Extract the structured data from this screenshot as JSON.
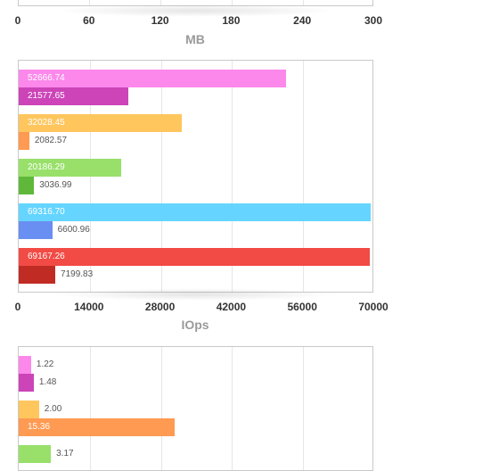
{
  "chart_data": [
    {
      "type": "bar",
      "orientation": "horizontal",
      "xlabel": "MB",
      "xlim": [
        0,
        300
      ],
      "ticks": [
        "0",
        "60",
        "120",
        "180",
        "240",
        "300"
      ],
      "grid": true,
      "categories": [],
      "series": []
    },
    {
      "type": "bar",
      "orientation": "horizontal",
      "xlabel": "IOps",
      "xlim": [
        0,
        70000
      ],
      "ticks": [
        "0",
        "14000",
        "28000",
        "42000",
        "56000",
        "70000"
      ],
      "grid": true,
      "groups": [
        {
          "bars": [
            {
              "value": 52666.74,
              "label": "52666.74",
              "color": "#fc88eb"
            },
            {
              "value": 21577.65,
              "label": "21577.65",
              "color": "#cc44b8"
            }
          ]
        },
        {
          "bars": [
            {
              "value": 32028.45,
              "label": "32028.45",
              "color": "#ffc65e"
            },
            {
              "value": 2082.57,
              "label": "2082.57",
              "color": "#ff9a52"
            }
          ]
        },
        {
          "bars": [
            {
              "value": 20186.29,
              "label": "20186.29",
              "color": "#98e06a"
            },
            {
              "value": 3036.99,
              "label": "3036.99",
              "color": "#5fb83a"
            }
          ]
        },
        {
          "bars": [
            {
              "value": 69316.7,
              "label": "69316.70",
              "color": "#65d5ff"
            },
            {
              "value": 6600.96,
              "label": "6600.96",
              "color": "#6a8ff2"
            }
          ]
        },
        {
          "bars": [
            {
              "value": 69167.26,
              "label": "69167.26",
              "color": "#f24a44"
            },
            {
              "value": 7199.83,
              "label": "7199.83",
              "color": "#c02c24"
            }
          ]
        }
      ]
    },
    {
      "type": "bar",
      "orientation": "horizontal",
      "xlim": [
        0,
        35
      ],
      "grid": true,
      "groups": [
        {
          "bars": [
            {
              "value": 1.22,
              "label": "1.22",
              "color": "#fc88eb"
            },
            {
              "value": 1.48,
              "label": "1.48",
              "color": "#cc44b8"
            }
          ]
        },
        {
          "bars": [
            {
              "value": 2.0,
              "label": "2.00",
              "color": "#ffc65e"
            },
            {
              "value": 15.36,
              "label": "15.36",
              "color": "#ff9a52"
            }
          ]
        },
        {
          "bars": [
            {
              "value": 3.17,
              "label": "3.17",
              "color": "#98e06a"
            }
          ]
        }
      ]
    }
  ]
}
